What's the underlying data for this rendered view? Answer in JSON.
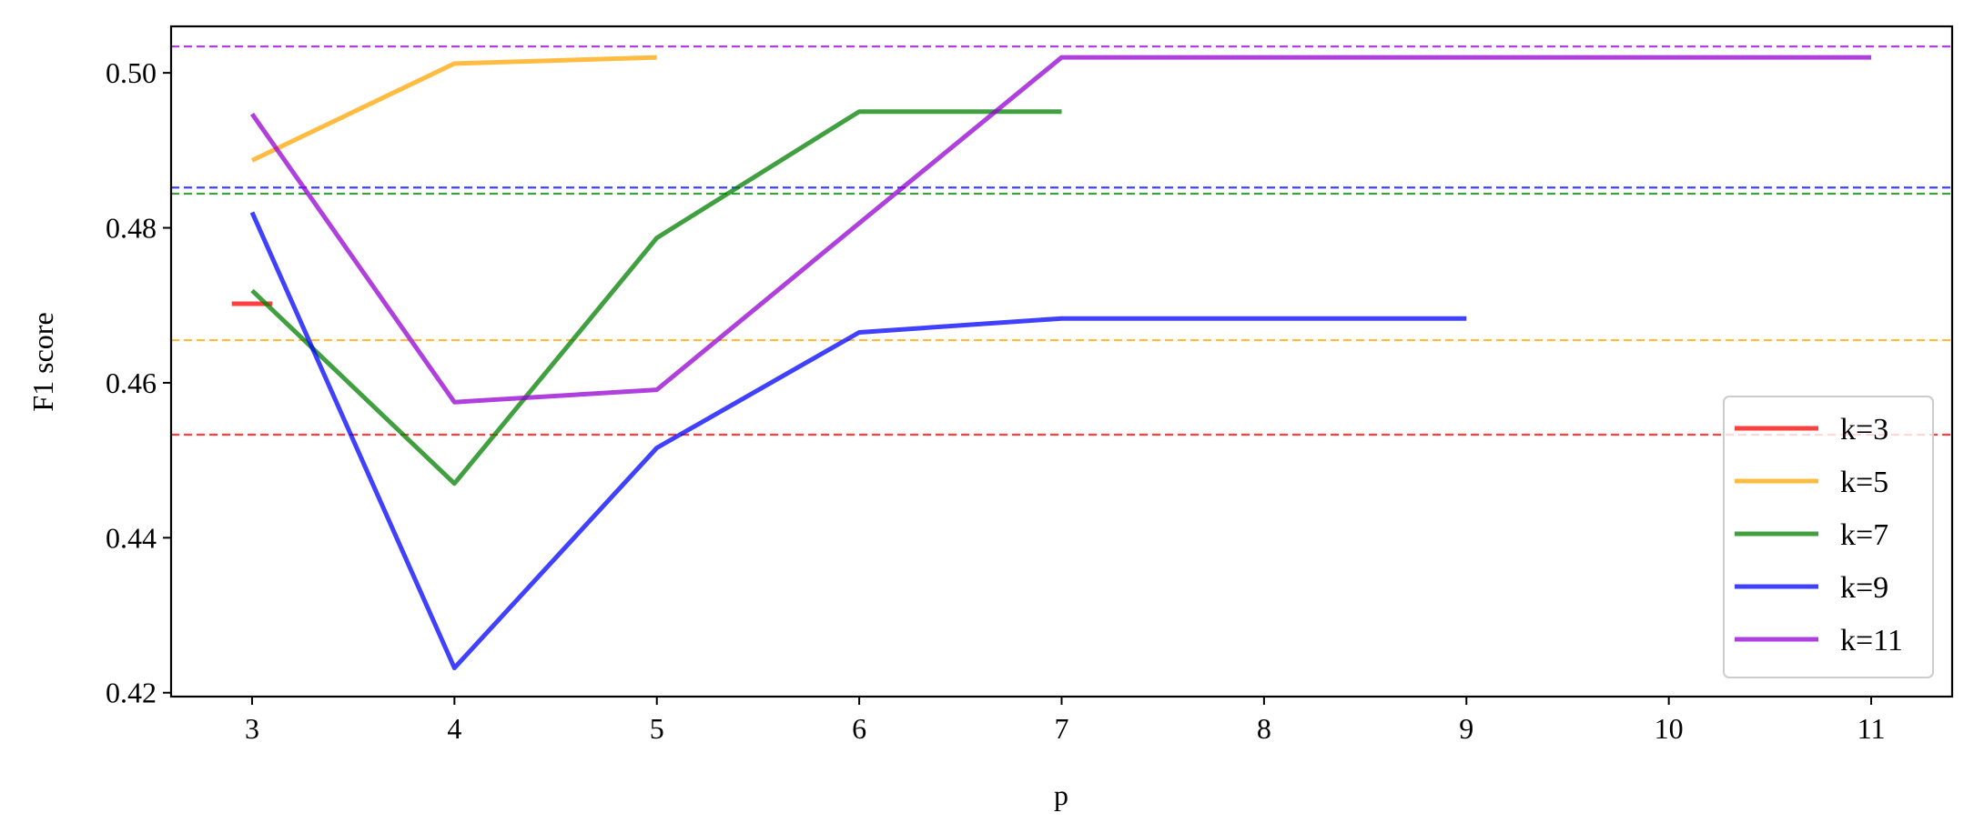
{
  "chart_data": {
    "type": "line",
    "title": "",
    "xlabel": "p",
    "ylabel": "F1 score",
    "xlim": [
      2.6,
      11.4
    ],
    "ylim": [
      0.4195,
      0.506
    ],
    "xticks": [
      3,
      4,
      5,
      6,
      7,
      8,
      9,
      10,
      11
    ],
    "yticks": [
      0.42,
      0.44,
      0.46,
      0.48,
      0.5
    ],
    "ytick_labels": [
      "0.42",
      "0.44",
      "0.46",
      "0.48",
      "0.50"
    ],
    "grid": false,
    "legend_position": "lower-right",
    "series": [
      {
        "name": "k=3",
        "color": "#ff0000",
        "x": [
          2.9,
          3.1
        ],
        "y": [
          0.4702,
          0.4702
        ],
        "baseline": 0.4533
      },
      {
        "name": "k=5",
        "color": "#ffa500",
        "x": [
          3,
          4,
          5
        ],
        "y": [
          0.4887,
          0.5012,
          0.502
        ],
        "baseline": 0.4655
      },
      {
        "name": "k=7",
        "color": "#008000",
        "x": [
          3,
          4,
          5,
          6,
          7
        ],
        "y": [
          0.4719,
          0.447,
          0.4787,
          0.495,
          0.495
        ],
        "baseline": 0.4844
      },
      {
        "name": "k=9",
        "color": "#0000ff",
        "x": [
          3,
          4,
          5,
          6,
          7,
          8,
          9
        ],
        "y": [
          0.482,
          0.4232,
          0.4516,
          0.4665,
          0.4683,
          0.4683,
          0.4683
        ],
        "baseline": 0.4852
      },
      {
        "name": "k=11",
        "color": "#9400d3",
        "x": [
          3,
          4,
          5,
          6,
          7,
          8,
          9,
          10,
          11
        ],
        "y": [
          0.4947,
          0.4575,
          0.4591,
          0.4806,
          0.502,
          0.502,
          0.502,
          0.502,
          0.502
        ],
        "baseline": 0.5034
      }
    ]
  }
}
